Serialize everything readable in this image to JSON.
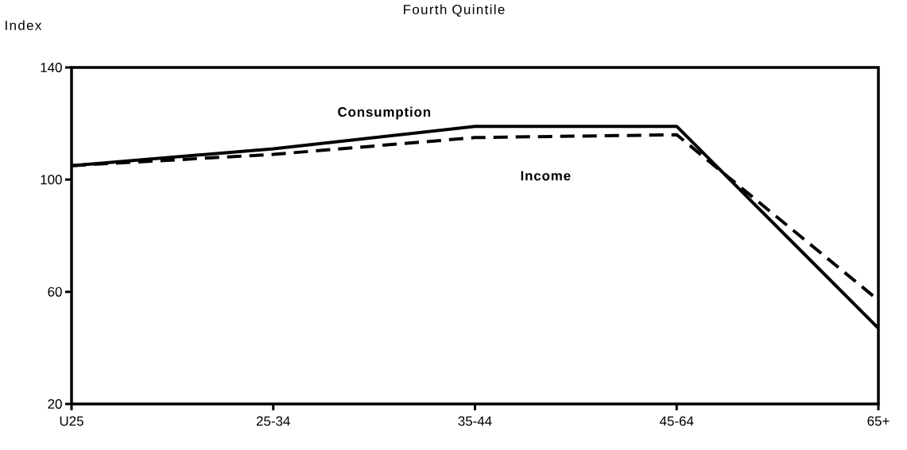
{
  "chart_data": {
    "type": "line",
    "title": "Fourth  Quintile",
    "ylabel": "Index",
    "categories": [
      "U25",
      "25-34",
      "35-44",
      "45-64",
      "65+"
    ],
    "series": [
      {
        "name": "Consumption",
        "color": "#000000",
        "line_style": "solid",
        "values": [
          105,
          111,
          119,
          119,
          47
        ]
      },
      {
        "name": "Income",
        "color": "#000000",
        "line_style": "dashed",
        "values": [
          105,
          109,
          115,
          116,
          57
        ]
      }
    ],
    "ylim": [
      20,
      140
    ],
    "yticks": [
      20,
      60,
      100,
      140
    ],
    "grid": false,
    "marker": "none"
  }
}
